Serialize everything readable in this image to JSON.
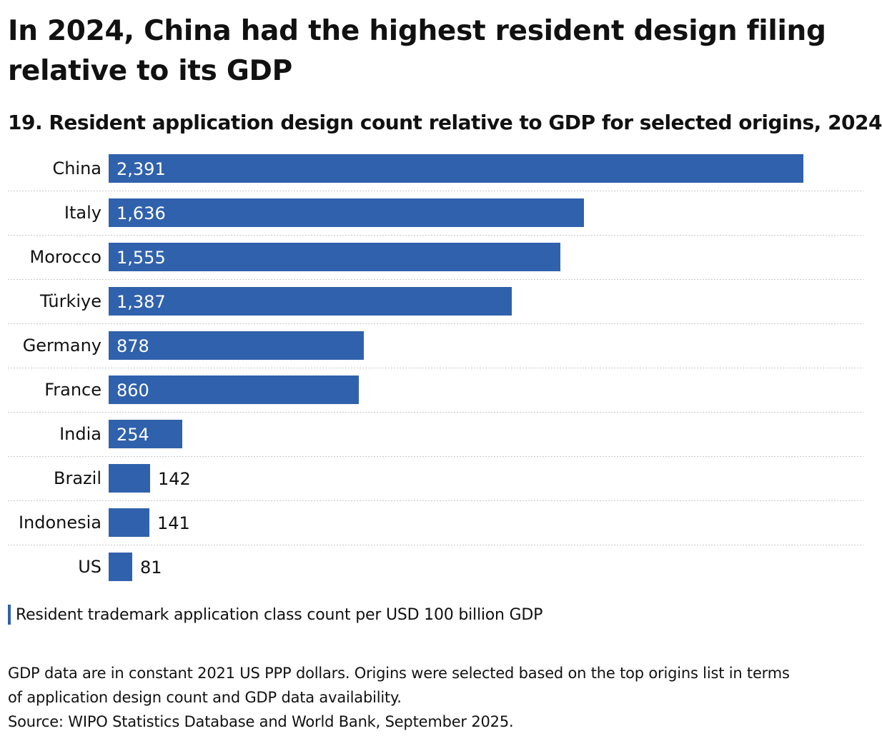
{
  "title": "In 2024, China had the highest resident design filing relative to its GDP",
  "subtitle": "19. Resident application design count relative to GDP for selected origins, 2024",
  "legend": {
    "label": "Resident trademark application class count per USD 100 billion GDP"
  },
  "notes": {
    "line1": "GDP data are in constant 2021 US PPP dollars. Origins were selected based on the top origins list in terms",
    "line2": "of application design count and GDP data availability.",
    "source": "Source: WIPO Statistics Database and World Bank, September 2025."
  },
  "colors": {
    "bar": "#3061ac",
    "label_inside": "#ffffff",
    "label_outside": "#111111",
    "separator": "#c8c8c8"
  },
  "chart_data": {
    "type": "bar",
    "orientation": "horizontal",
    "categories": [
      "China",
      "Italy",
      "Morocco",
      "Türkiye",
      "Germany",
      "France",
      "India",
      "Brazil",
      "Indonesia",
      "US"
    ],
    "values": [
      2391,
      1636,
      1555,
      1387,
      878,
      860,
      254,
      142,
      141,
      81
    ],
    "labels": [
      "2,391",
      "1,636",
      "1,555",
      "1,387",
      "878",
      "860",
      "254",
      "142",
      "141",
      "81"
    ],
    "series": [
      {
        "name": "Resident trademark application class count per USD 100 billion GDP",
        "values": [
          2391,
          1636,
          1555,
          1387,
          878,
          860,
          254,
          142,
          141,
          81
        ]
      }
    ],
    "xlim": [
      0,
      2391
    ],
    "grid": false,
    "legend_position": "bottom-left"
  }
}
